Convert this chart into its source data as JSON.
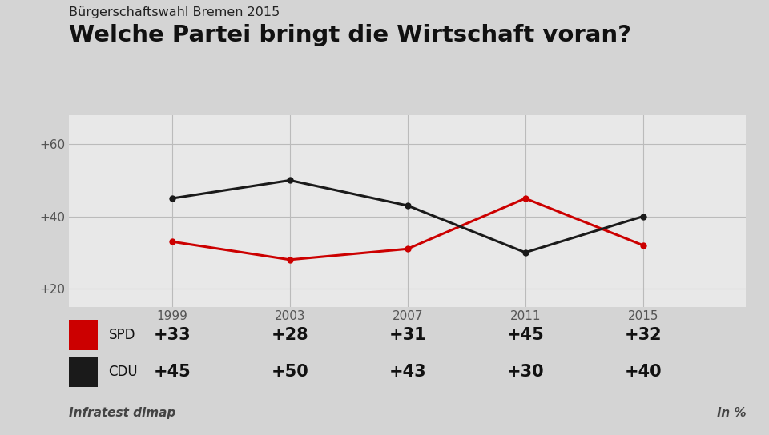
{
  "subtitle": "Bürgerschaftswahl Bremen 2015",
  "title": "Welche Partei bringt die Wirtschaft voran?",
  "years": [
    1999,
    2003,
    2007,
    2011,
    2015
  ],
  "spd_values": [
    33,
    28,
    31,
    45,
    32
  ],
  "cdu_values": [
    45,
    50,
    43,
    30,
    40
  ],
  "spd_color": "#cc0000",
  "cdu_color": "#1a1a1a",
  "yticks": [
    20,
    40,
    60
  ],
  "ytick_labels": [
    "+20",
    "+40",
    "+60"
  ],
  "source": "Infratest dimap",
  "unit": "in %",
  "bg_color": "#d4d4d4",
  "chart_bg": "#e8e8e8",
  "table_bg": "#ffffff",
  "grid_color": "#bbbbbb",
  "xlim": [
    1995.5,
    2018.5
  ],
  "ylim": [
    15,
    68
  ]
}
